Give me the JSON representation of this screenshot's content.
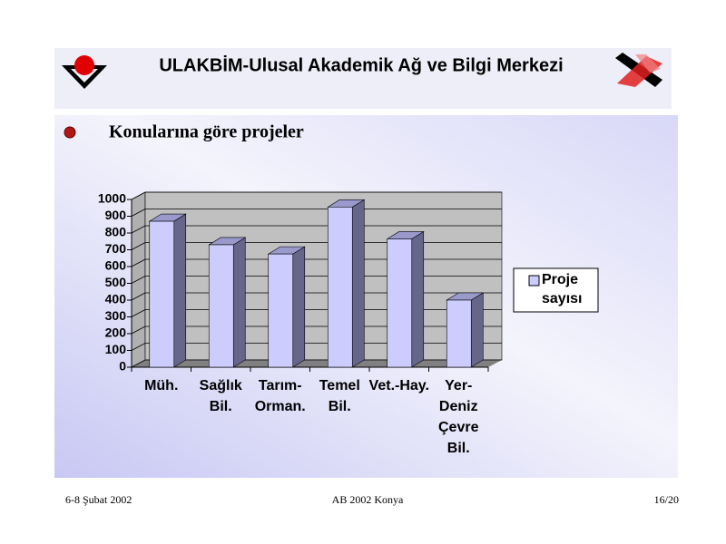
{
  "header": {
    "title": "ULAKBİM-Ulusal Akademik Ağ ve Bilgi  Merkezi"
  },
  "slide_title": "Konularına göre projeler",
  "chart_data": {
    "type": "bar3d",
    "categories": [
      "Müh.",
      "Sağlık Bil.",
      "Tarım-Orman.",
      "Temel Bil.",
      "Vet.-Hay.",
      "Yer-Deniz Çevre Bil."
    ],
    "series": [
      {
        "name": "Proje sayısı",
        "color": "#ccccff",
        "values": [
          870,
          730,
          675,
          955,
          765,
          400
        ]
      }
    ],
    "ylim": [
      0,
      1000
    ],
    "yticks": [
      0,
      100,
      200,
      300,
      400,
      500,
      600,
      700,
      800,
      900,
      1000
    ],
    "grid": true,
    "legend": "right"
  },
  "footer": {
    "left": "6-8 Şubat 2002",
    "center": "AB 2002 Konya",
    "right": "16/20"
  }
}
